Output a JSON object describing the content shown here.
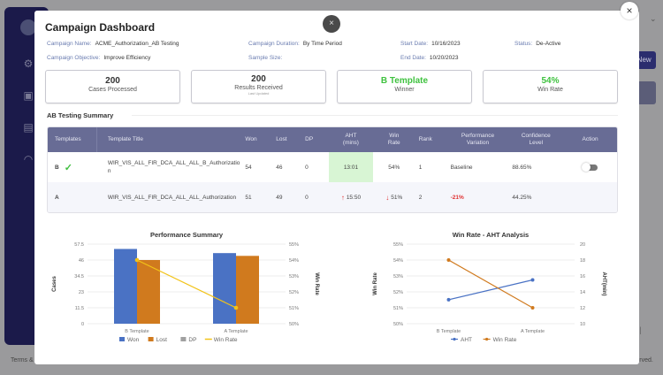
{
  "background": {
    "add_new_label": "d New",
    "footer_left": "Terms &",
    "footer_right": "eserved.",
    "pager_last": ">|",
    "chevron": "⌄"
  },
  "modal": {
    "title": "Campaign Dashboard",
    "close_center": "×",
    "close_corner": "×"
  },
  "meta": {
    "campaign_name_label": "Campaign Name:",
    "campaign_name": "ACME_Authorization_AB Testing",
    "campaign_objective_label": "Campaign Objective:",
    "campaign_objective": "Improve Efficiency",
    "campaign_duration_label": "Campaign Duration:",
    "campaign_duration": "By Time Period",
    "sample_size_label": "Sample Size:",
    "sample_size": "",
    "start_date_label": "Start Date:",
    "start_date": "10/16/2023",
    "end_date_label": "End Date:",
    "end_date": "10/20/2023",
    "status_label": "Status:",
    "status": "De-Active"
  },
  "stats": [
    {
      "value": "200",
      "label": "Cases Processed",
      "sub": ""
    },
    {
      "value": "200",
      "label": "Results Received",
      "sub": "Last Updated"
    },
    {
      "value": "B Template",
      "label": "Winner",
      "sub": ""
    },
    {
      "value": "54%",
      "label": "Win Rate",
      "sub": ""
    }
  ],
  "section_title": "AB Testing Summary",
  "table": {
    "headers": [
      "Templates",
      "Template Title",
      "Won",
      "Lost",
      "DP",
      "AHT\n(mins)",
      "Win\nRate",
      "Rank",
      "Performance\nVariation",
      "Confidence\nLevel",
      "Action"
    ],
    "header_aht_1": "AHT",
    "header_aht_2": "(mins)",
    "header_wr_1": "Win",
    "header_wr_2": "Rate",
    "header_pv_1": "Performance",
    "header_pv_2": "Variation",
    "header_cl_1": "Confidence",
    "header_cl_2": "Level",
    "rows": [
      {
        "template": "B",
        "winner": "✓",
        "title": "WIR_VIS_ALL_FIR_DCA_ALL_ALL_B_Authorization",
        "won": "54",
        "lost": "46",
        "dp": "0",
        "aht": "13:01",
        "win_rate": "54%",
        "rank": "1",
        "variation": "Baseline",
        "confidence": "88.65%",
        "action_toggle": "off"
      },
      {
        "template": "A",
        "winner": "",
        "title": "WIR_VIS_ALL_FIR_DCA_ALL_ALL_Authorization",
        "won": "51",
        "lost": "49",
        "dp": "0",
        "aht": "15:50",
        "win_rate": "51%",
        "rank": "2",
        "variation": "-21%",
        "confidence": "44.25%",
        "aht_arrow": "↑",
        "wr_arrow": "↓"
      }
    ]
  },
  "colors": {
    "won": "#4a72c4",
    "lost": "#d07a1e",
    "dp": "#a0a0a0",
    "win_rate_line": "#f2c318",
    "aht_line": "#4a72c4",
    "wr_line2": "#d07a1e",
    "header_bg": "#686c95",
    "winner_green": "#3fc23f"
  },
  "chart_data": [
    {
      "type": "bar",
      "title": "Performance Summary",
      "categories": [
        "B Template",
        "A Template"
      ],
      "series": [
        {
          "name": "Won",
          "values": [
            54,
            51
          ]
        },
        {
          "name": "Lost",
          "values": [
            46,
            49
          ]
        },
        {
          "name": "DP",
          "values": [
            0,
            0
          ]
        }
      ],
      "line_series": {
        "name": "Win Rate",
        "values": [
          54,
          51
        ],
        "axis": "right"
      },
      "ylabel": "Cases",
      "y2label": "Win Rate",
      "ylim": [
        0,
        57.5
      ],
      "yticks": [
        "0",
        "11.5",
        "23",
        "34.5",
        "46",
        "57.5"
      ],
      "y2lim": [
        50,
        55
      ],
      "y2ticks": [
        "50%",
        "51%",
        "52%",
        "53%",
        "54%",
        "55%"
      ],
      "legend": [
        "Won",
        "Lost",
        "DP",
        "Win Rate"
      ],
      "legend_position": "bottom"
    },
    {
      "type": "line",
      "title": "Win Rate - AHT Analysis",
      "categories": [
        "B Template",
        "A Template"
      ],
      "series": [
        {
          "name": "AHT",
          "values": [
            13.01,
            15.5
          ],
          "axis": "right"
        },
        {
          "name": "Win Rate",
          "values": [
            54,
            51
          ],
          "axis": "left"
        }
      ],
      "ylabel": "Win Rate",
      "y2label": "AHT(min)",
      "ylim": [
        50,
        55
      ],
      "yticks": [
        "50%",
        "51%",
        "52%",
        "53%",
        "54%",
        "55%"
      ],
      "y2lim": [
        10,
        20
      ],
      "y2ticks": [
        "10",
        "12",
        "14",
        "16",
        "18",
        "20"
      ],
      "legend": [
        "AHT",
        "Win Rate"
      ],
      "legend_position": "bottom"
    }
  ]
}
